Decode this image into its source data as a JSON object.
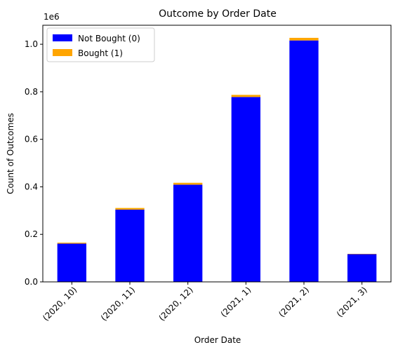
{
  "chart_data": {
    "type": "bar",
    "stacked": true,
    "title": "Outcome by Order Date",
    "xlabel": "Order Date",
    "ylabel": "Count of Outcomes",
    "y_offset_label": "1e6",
    "ylim": [
      0,
      1.08
    ],
    "yticks": [
      "0.0",
      "0.2",
      "0.4",
      "0.6",
      "0.8",
      "1.0"
    ],
    "categories": [
      "(2020, 10)",
      "(2020, 11)",
      "(2020, 12)",
      "(2021, 1)",
      "(2021, 2)",
      "(2021, 3)"
    ],
    "series": [
      {
        "name": "Not Bought (0)",
        "color": "#0000ff",
        "values": [
          0.161,
          0.304,
          0.409,
          0.778,
          1.016,
          0.117
        ]
      },
      {
        "name": "Bought (1)",
        "color": "#ffa500",
        "values": [
          0.004,
          0.007,
          0.008,
          0.009,
          0.011,
          0.001
        ]
      }
    ],
    "legend": {
      "position": "top-left"
    },
    "grid": false
  }
}
